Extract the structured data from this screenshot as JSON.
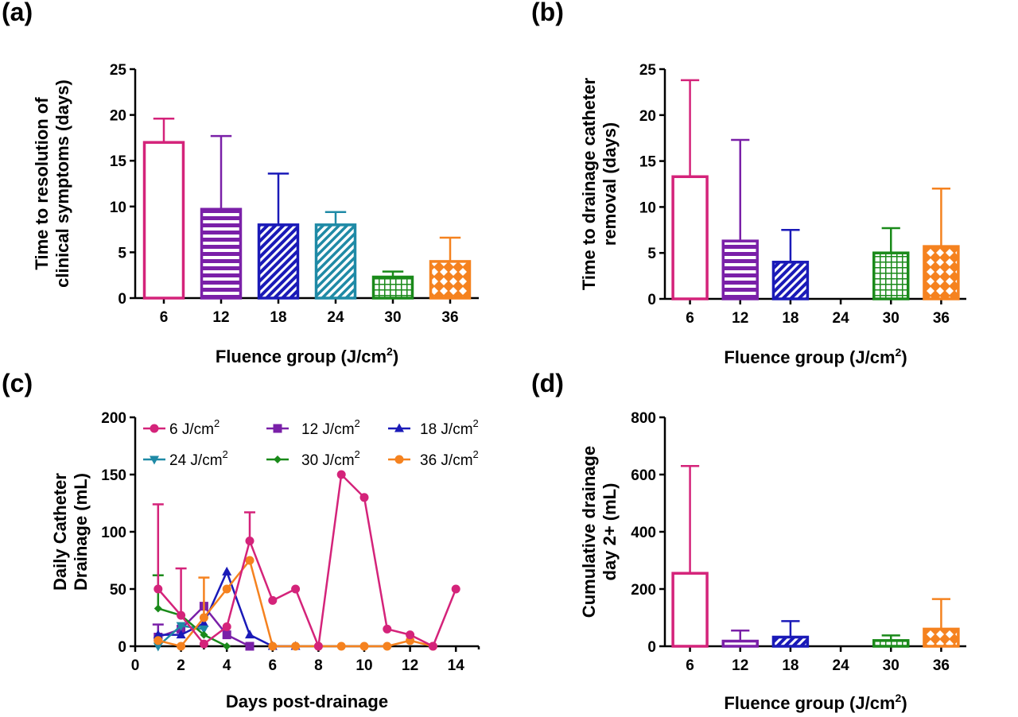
{
  "colors": {
    "6": "#d4237a",
    "12": "#7a20a8",
    "18": "#1a1ab8",
    "24": "#1f8aa6",
    "30": "#1a8a1a",
    "36": "#f5821f"
  },
  "chart_data": [
    {
      "panel": "(a)",
      "type": "bar",
      "categories": [
        "6",
        "12",
        "18",
        "24",
        "30",
        "36"
      ],
      "values": [
        17,
        9.7,
        8,
        8,
        2.3,
        4
      ],
      "error_upper": [
        19.6,
        17.7,
        13.6,
        9.4,
        2.9,
        6.6
      ],
      "patterns": [
        "none",
        "hlines",
        "diag",
        "diag-wide",
        "grid",
        "cross"
      ],
      "xlabel": "Fluence group (J/cm",
      "xlabel_sup": "2",
      "xlabel_tail": ")",
      "ylabel": [
        "Time to resolution of",
        "clinical symptoms  (days)"
      ],
      "yticks": [
        "0",
        "5",
        "10",
        "15",
        "20",
        "25"
      ],
      "ylim": [
        0,
        25
      ]
    },
    {
      "panel": "(b)",
      "type": "bar",
      "categories": [
        "6",
        "12",
        "18",
        "24",
        "30",
        "36"
      ],
      "values": [
        13.3,
        6.3,
        4,
        0,
        5,
        5.7
      ],
      "error_upper": [
        23.8,
        17.3,
        7.5,
        0,
        7.7,
        12
      ],
      "patterns": [
        "none",
        "hlines",
        "diag",
        "diag-wide",
        "grid",
        "cross"
      ],
      "xlabel": "Fluence group (J/cm",
      "xlabel_sup": "2",
      "xlabel_tail": ")",
      "ylabel": [
        "Time to drainage catheter",
        "removal  (days)"
      ],
      "yticks": [
        "0",
        "5",
        "10",
        "15",
        "20",
        "25"
      ],
      "ylim": [
        0,
        25
      ]
    },
    {
      "panel": "(c)",
      "type": "line",
      "xlabel": "Days post-drainage",
      "ylabel": [
        "Daily Catheter",
        "Drainage (mL)"
      ],
      "xticks": [
        "0",
        "2",
        "4",
        "6",
        "8",
        "10",
        "12",
        "14"
      ],
      "yticks": [
        "0",
        "50",
        "100",
        "150",
        "200"
      ],
      "xlim": [
        0,
        15
      ],
      "ylim": [
        0,
        200
      ],
      "legend_position": "top",
      "series": [
        {
          "name": "6 J/cm",
          "sup": "2",
          "group": "6",
          "marker": "circle",
          "x": [
            1,
            2,
            3,
            4,
            5,
            6,
            7,
            8,
            9,
            10,
            11,
            12,
            13,
            14
          ],
          "y": [
            50,
            27,
            2,
            17,
            92,
            40,
            50,
            0,
            150,
            130,
            15,
            10,
            0,
            50
          ],
          "err": [
            124,
            68,
            null,
            null,
            117,
            null,
            null,
            null,
            null,
            null,
            null,
            null,
            null,
            null
          ]
        },
        {
          "name": "12 J/cm",
          "sup": "2",
          "group": "12",
          "marker": "square",
          "x": [
            1,
            2,
            3,
            4,
            5
          ],
          "y": [
            8,
            15,
            35,
            10,
            0
          ],
          "err": [
            19,
            null,
            null,
            null,
            null
          ]
        },
        {
          "name": "18 J/cm",
          "sup": "2",
          "group": "18",
          "marker": "triangle-up",
          "x": [
            1,
            2,
            3,
            4,
            5,
            6,
            7
          ],
          "y": [
            10,
            10,
            20,
            65,
            10,
            0,
            0
          ],
          "err": [
            null,
            null,
            null,
            null,
            null,
            null,
            null
          ]
        },
        {
          "name": "24 J/cm",
          "sup": "2",
          "group": "24",
          "marker": "triangle-down",
          "x": [
            1,
            2,
            3
          ],
          "y": [
            0,
            18,
            15
          ],
          "err": [
            null,
            null,
            null
          ]
        },
        {
          "name": "30 J/cm",
          "sup": "2",
          "group": "30",
          "marker": "diamond",
          "x": [
            1,
            2,
            3,
            4
          ],
          "y": [
            33,
            27,
            10,
            0
          ],
          "err": [
            62,
            null,
            null,
            null
          ]
        },
        {
          "name": "36 J/cm",
          "sup": "2",
          "group": "36",
          "marker": "circle",
          "x": [
            1,
            2,
            3,
            4,
            5,
            6,
            7,
            8,
            9,
            10,
            11,
            12,
            13
          ],
          "y": [
            5,
            0,
            25,
            50,
            75,
            0,
            0,
            0,
            0,
            0,
            0,
            5,
            0
          ],
          "err": [
            null,
            null,
            60,
            null,
            null,
            null,
            null,
            null,
            null,
            null,
            null,
            null,
            null
          ]
        }
      ]
    },
    {
      "panel": "(d)",
      "type": "bar",
      "categories": [
        "6",
        "12",
        "18",
        "24",
        "30",
        "36"
      ],
      "values": [
        255,
        18,
        32,
        0,
        20,
        60
      ],
      "error_upper": [
        630,
        55,
        88,
        0,
        38,
        165
      ],
      "patterns": [
        "none",
        "hlines",
        "diag",
        "diag-wide",
        "grid",
        "cross"
      ],
      "xlabel": "Fluence group (J/cm",
      "xlabel_sup": "2",
      "xlabel_tail": ")",
      "ylabel": [
        "Cumulative drainage",
        "day 2+ (mL)"
      ],
      "yticks": [
        "0",
        "200",
        "400",
        "600",
        "800"
      ],
      "ylim": [
        0,
        800
      ]
    }
  ]
}
